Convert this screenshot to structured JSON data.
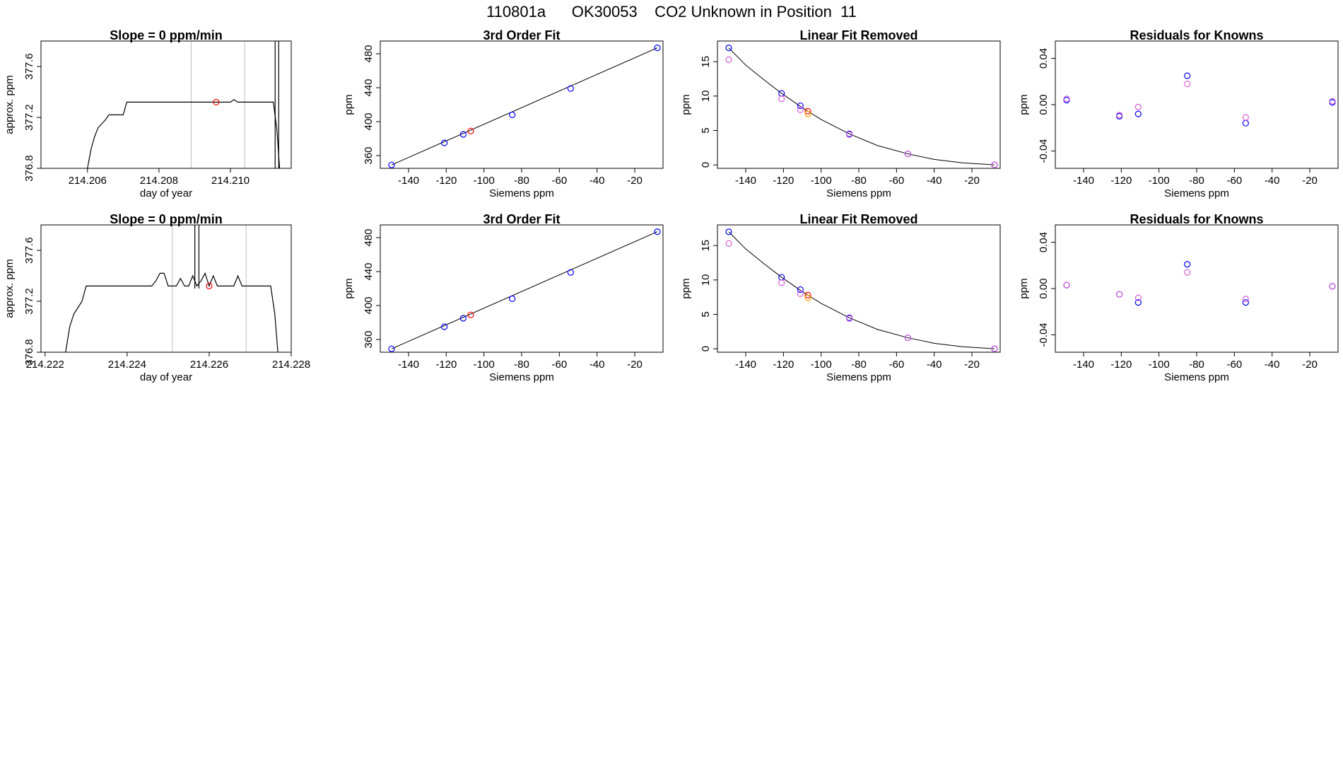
{
  "page_title": "110801a      OK30053    CO2 Unknown in Position  11",
  "colors": {
    "frame": "#000000",
    "line": "#000000",
    "vline": "#bebebe",
    "knowns": "#0000ff",
    "knowns_alt": "#d55fd5",
    "unknown": "#ff0000",
    "unknown_alt": "#ffa500"
  },
  "chart_data": [
    {
      "type": "line",
      "title": "Slope =  0  ppm/min",
      "xlabel": "day of year",
      "ylabel": "approx. ppm",
      "xlim": [
        214.2047,
        214.2117
      ],
      "ylim": [
        376.8,
        377.8
      ],
      "xticks": [
        "214.206",
        "214.208",
        "214.210"
      ],
      "xtick_values": [
        214.206,
        214.208,
        214.21
      ],
      "yticks": [
        "376.8",
        "377.2",
        "377.6"
      ],
      "ytick_values": [
        376.8,
        377.2,
        377.6
      ],
      "vlines": [
        214.2089,
        214.2104
      ],
      "series": [
        {
          "style": "line",
          "x": [
            214.2047,
            214.206,
            214.2061,
            214.2062,
            214.2063,
            214.2064,
            214.2065,
            214.2066,
            214.2067,
            214.2068,
            214.207,
            214.2071,
            214.2072,
            214.2085,
            214.21,
            214.2101,
            214.2102,
            214.2112,
            214.2113,
            214.2114,
            214.2115,
            214.2117
          ],
          "y": [
            376.75,
            376.8,
            376.95,
            377.05,
            377.12,
            377.15,
            377.18,
            377.22,
            377.22,
            377.22,
            377.22,
            377.32,
            377.32,
            377.32,
            377.32,
            377.34,
            377.32,
            377.32,
            377.1,
            376.7,
            376.7,
            376.7
          ]
        },
        {
          "style": "line",
          "x": [
            214.21125,
            214.21125
          ],
          "y": [
            376.7,
            377.8
          ]
        },
        {
          "style": "line",
          "x": [
            214.21135,
            214.21135
          ],
          "y": [
            376.7,
            377.8
          ]
        },
        {
          "style": "points",
          "color": "unknown",
          "x": [
            214.2096
          ],
          "y": [
            377.32
          ]
        }
      ]
    },
    {
      "type": "scatter",
      "title": "3rd Order Fit",
      "xlabel": "Siemens ppm",
      "ylabel": "ppm",
      "xlim": [
        -155,
        -5
      ],
      "ylim": [
        345,
        495
      ],
      "xticks": [
        "-140",
        "-120",
        "-100",
        "-80",
        "-60",
        "-40",
        "-20"
      ],
      "xtick_values": [
        -140,
        -120,
        -100,
        -80,
        -60,
        -40,
        -20
      ],
      "yticks": [
        "360",
        "400",
        "440",
        "480"
      ],
      "ytick_values": [
        360,
        400,
        440,
        480
      ],
      "curve": {
        "x": [
          -149,
          -8
        ],
        "y": [
          349,
          487
        ]
      },
      "series": [
        {
          "style": "points",
          "color": "knowns",
          "x": [
            -149,
            -121,
            -111,
            -85,
            -54,
            -8
          ],
          "y": [
            349,
            375,
            385,
            408,
            439,
            487
          ]
        },
        {
          "style": "points",
          "color": "unknown",
          "x": [
            -107
          ],
          "y": [
            389
          ]
        }
      ]
    },
    {
      "type": "scatter",
      "title": "Linear Fit Removed",
      "xlabel": "Siemens ppm",
      "ylabel": "ppm",
      "xlim": [
        -155,
        -5
      ],
      "ylim": [
        -0.5,
        18
      ],
      "xticks": [
        "-140",
        "-120",
        "-100",
        "-80",
        "-60",
        "-40",
        "-20"
      ],
      "xtick_values": [
        -140,
        -120,
        -100,
        -80,
        -60,
        -40,
        -20
      ],
      "yticks": [
        "0",
        "5",
        "10",
        "15"
      ],
      "ytick_values": [
        0,
        5,
        10,
        15
      ],
      "curve": {
        "x": [
          -149,
          -140,
          -130,
          -121,
          -111,
          -100,
          -85,
          -70,
          -54,
          -40,
          -25,
          -8
        ],
        "y": [
          17.0,
          14.5,
          12.3,
          10.4,
          8.5,
          6.6,
          4.5,
          2.8,
          1.6,
          0.8,
          0.3,
          0.0
        ]
      },
      "series": [
        {
          "style": "points",
          "color": "knowns",
          "x": [
            -149,
            -121,
            -111,
            -85,
            -54,
            -8
          ],
          "y": [
            17.0,
            10.4,
            8.6,
            4.5,
            1.6,
            0.0
          ]
        },
        {
          "style": "points",
          "color": "knowns_alt",
          "x": [
            -149,
            -121,
            -111,
            -85,
            -54,
            -8
          ],
          "y": [
            15.3,
            9.6,
            8.0,
            4.4,
            1.6,
            0.0
          ]
        },
        {
          "style": "points",
          "color": "unknown",
          "x": [
            -107
          ],
          "y": [
            7.8
          ]
        },
        {
          "style": "points",
          "color": "unknown_alt",
          "x": [
            -107
          ],
          "y": [
            7.4
          ]
        }
      ]
    },
    {
      "type": "scatter",
      "title": "Residuals for Knowns",
      "xlabel": "Siemens ppm",
      "ylabel": "ppm",
      "xlim": [
        -155,
        -5
      ],
      "ylim": [
        -0.055,
        0.055
      ],
      "xticks": [
        "-140",
        "-120",
        "-100",
        "-80",
        "-60",
        "-40",
        "-20"
      ],
      "xtick_values": [
        -140,
        -120,
        -100,
        -80,
        -60,
        -40,
        -20
      ],
      "yticks": [
        "-0.04",
        "0.00",
        "0.04"
      ],
      "ytick_values": [
        -0.04,
        0.0,
        0.04
      ],
      "series": [
        {
          "style": "points",
          "color": "knowns",
          "x": [
            -149,
            -121,
            -111,
            -85,
            -54,
            -8
          ],
          "y": [
            0.004,
            -0.01,
            -0.008,
            0.025,
            -0.016,
            0.002
          ]
        },
        {
          "style": "points",
          "color": "knowns_alt",
          "x": [
            -149,
            -121,
            -111,
            -85,
            -54,
            -8
          ],
          "y": [
            0.005,
            -0.009,
            -0.002,
            0.018,
            -0.011,
            0.003
          ]
        }
      ]
    },
    {
      "type": "line",
      "title": "Slope =  0  ppm/min",
      "xlabel": "day of year",
      "ylabel": "approx. ppm",
      "xlim": [
        214.2219,
        214.228
      ],
      "ylim": [
        376.8,
        377.8
      ],
      "xticks": [
        "214.222",
        "214.224",
        "214.226",
        "214.228"
      ],
      "xtick_values": [
        214.222,
        214.224,
        214.226,
        214.228
      ],
      "yticks": [
        "376.8",
        "377.2",
        "377.6"
      ],
      "ytick_values": [
        376.8,
        377.2,
        377.6
      ],
      "vlines": [
        214.2251,
        214.2269
      ],
      "series": [
        {
          "style": "line",
          "x": [
            214.2219,
            214.2225,
            214.2226,
            214.2227,
            214.2228,
            214.2229,
            214.223,
            214.2246,
            214.2247,
            214.2248,
            214.2249,
            214.225,
            214.2251,
            214.2252,
            214.2253,
            214.2254,
            214.2255,
            214.2256,
            214.2257,
            214.2258,
            214.2259,
            214.226,
            214.2261,
            214.2262,
            214.2266,
            214.2267,
            214.2268,
            214.2275,
            214.2276,
            214.2277,
            214.228
          ],
          "y": [
            376.7,
            376.8,
            377.0,
            377.1,
            377.15,
            377.2,
            377.32,
            377.32,
            377.36,
            377.42,
            377.42,
            377.32,
            377.32,
            377.32,
            377.38,
            377.32,
            377.32,
            377.4,
            377.32,
            377.36,
            377.42,
            377.32,
            377.4,
            377.32,
            377.32,
            377.4,
            377.32,
            377.32,
            377.1,
            376.7,
            376.7
          ]
        },
        {
          "style": "line",
          "x": [
            214.22565,
            214.22565
          ],
          "y": [
            377.3,
            377.8
          ]
        },
        {
          "style": "line",
          "x": [
            214.22575,
            214.22575
          ],
          "y": [
            377.3,
            377.8
          ]
        },
        {
          "style": "points",
          "color": "unknown",
          "x": [
            214.226
          ],
          "y": [
            377.32
          ]
        }
      ]
    },
    {
      "type": "scatter",
      "title": "3rd Order Fit",
      "xlabel": "Siemens ppm",
      "ylabel": "ppm",
      "xlim": [
        -155,
        -5
      ],
      "ylim": [
        345,
        495
      ],
      "xticks": [
        "-140",
        "-120",
        "-100",
        "-80",
        "-60",
        "-40",
        "-20"
      ],
      "xtick_values": [
        -140,
        -120,
        -100,
        -80,
        -60,
        -40,
        -20
      ],
      "yticks": [
        "360",
        "400",
        "440",
        "480"
      ],
      "ytick_values": [
        360,
        400,
        440,
        480
      ],
      "curve": {
        "x": [
          -149,
          -8
        ],
        "y": [
          349,
          487
        ]
      },
      "series": [
        {
          "style": "points",
          "color": "knowns",
          "x": [
            -149,
            -121,
            -111,
            -85,
            -54,
            -8
          ],
          "y": [
            349,
            375,
            385,
            408,
            439,
            487
          ]
        },
        {
          "style": "points",
          "color": "unknown",
          "x": [
            -107
          ],
          "y": [
            389
          ]
        }
      ]
    },
    {
      "type": "scatter",
      "title": "Linear Fit Removed",
      "xlabel": "Siemens ppm",
      "ylabel": "ppm",
      "xlim": [
        -155,
        -5
      ],
      "ylim": [
        -0.5,
        18
      ],
      "xticks": [
        "-140",
        "-120",
        "-100",
        "-80",
        "-60",
        "-40",
        "-20"
      ],
      "xtick_values": [
        -140,
        -120,
        -100,
        -80,
        -60,
        -40,
        -20
      ],
      "yticks": [
        "0",
        "5",
        "10",
        "15"
      ],
      "ytick_values": [
        0,
        5,
        10,
        15
      ],
      "curve": {
        "x": [
          -149,
          -140,
          -130,
          -121,
          -111,
          -100,
          -85,
          -70,
          -54,
          -40,
          -25,
          -8
        ],
        "y": [
          17.0,
          14.5,
          12.3,
          10.4,
          8.5,
          6.6,
          4.5,
          2.8,
          1.6,
          0.8,
          0.3,
          0.0
        ]
      },
      "series": [
        {
          "style": "points",
          "color": "knowns",
          "x": [
            -149,
            -121,
            -111,
            -85,
            -54,
            -8
          ],
          "y": [
            17.0,
            10.4,
            8.6,
            4.5,
            1.6,
            0.0
          ]
        },
        {
          "style": "points",
          "color": "knowns_alt",
          "x": [
            -149,
            -121,
            -111,
            -85,
            -54,
            -8
          ],
          "y": [
            15.3,
            9.6,
            8.0,
            4.4,
            1.6,
            0.0
          ]
        },
        {
          "style": "points",
          "color": "unknown",
          "x": [
            -107
          ],
          "y": [
            7.8
          ]
        },
        {
          "style": "points",
          "color": "unknown_alt",
          "x": [
            -107
          ],
          "y": [
            7.4
          ]
        }
      ]
    },
    {
      "type": "scatter",
      "title": "Residuals for Knowns",
      "xlabel": "Siemens ppm",
      "ylabel": "ppm",
      "xlim": [
        -155,
        -5
      ],
      "ylim": [
        -0.055,
        0.055
      ],
      "xticks": [
        "-140",
        "-120",
        "-100",
        "-80",
        "-60",
        "-40",
        "-20"
      ],
      "xtick_values": [
        -140,
        -120,
        -100,
        -80,
        -60,
        -40,
        -20
      ],
      "yticks": [
        "-0.04",
        "0.00",
        "0.04"
      ],
      "ytick_values": [
        -0.04,
        0.0,
        0.04
      ],
      "series": [
        {
          "style": "points",
          "color": "knowns",
          "x": [
            -149,
            -121,
            -111,
            -85,
            -54,
            -8
          ],
          "y": [
            0.003,
            -0.005,
            -0.012,
            0.021,
            -0.012,
            0.002
          ]
        },
        {
          "style": "points",
          "color": "knowns_alt",
          "x": [
            -149,
            -121,
            -111,
            -85,
            -54,
            -8
          ],
          "y": [
            0.003,
            -0.005,
            -0.008,
            0.014,
            -0.009,
            0.002
          ]
        }
      ]
    }
  ]
}
